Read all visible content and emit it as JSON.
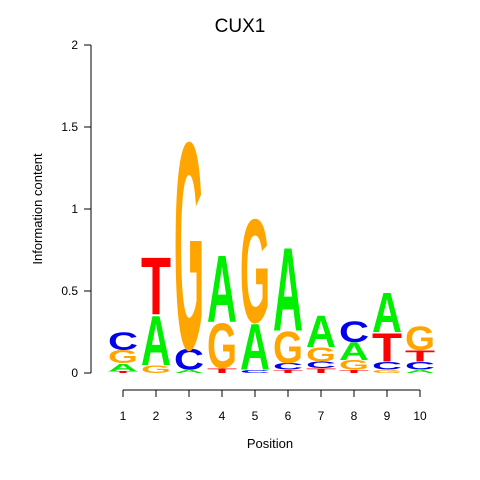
{
  "chart_data": {
    "type": "sequence-logo",
    "title": "CUX1",
    "xlabel": "Position",
    "ylabel": "Information content",
    "ylim": [
      0,
      2
    ],
    "yticks": [
      "0",
      "0.5",
      "1",
      "1.5",
      "2"
    ],
    "xticks": [
      "1",
      "2",
      "3",
      "4",
      "5",
      "6",
      "7",
      "8",
      "9",
      "10"
    ],
    "colors": {
      "A": "#00ee00",
      "C": "#0000ee",
      "G": "#ffa500",
      "T": "#ff0000"
    },
    "positions": [
      {
        "position": "1",
        "letters": [
          {
            "base": "T",
            "height": 0.01
          },
          {
            "base": "A",
            "height": 0.05
          },
          {
            "base": "G",
            "height": 0.08
          },
          {
            "base": "C",
            "height": 0.11
          }
        ]
      },
      {
        "position": "2",
        "letters": [
          {
            "base": "G",
            "height": 0.05
          },
          {
            "base": "A",
            "height": 0.31
          },
          {
            "base": "T",
            "height": 0.36
          }
        ]
      },
      {
        "position": "3",
        "letters": [
          {
            "base": "A",
            "height": 0.02
          },
          {
            "base": "C",
            "height": 0.13
          },
          {
            "base": "G",
            "height": 1.3
          }
        ]
      },
      {
        "position": "4",
        "letters": [
          {
            "base": "T",
            "height": 0.03
          },
          {
            "base": "G",
            "height": 0.28
          },
          {
            "base": "A",
            "height": 0.42
          }
        ]
      },
      {
        "position": "5",
        "letters": [
          {
            "base": "C",
            "height": 0.02
          },
          {
            "base": "A",
            "height": 0.29
          },
          {
            "base": "G",
            "height": 0.65
          }
        ]
      },
      {
        "position": "6",
        "letters": [
          {
            "base": "T",
            "height": 0.02
          },
          {
            "base": "C",
            "height": 0.04
          },
          {
            "base": "G",
            "height": 0.2
          },
          {
            "base": "A",
            "height": 0.52
          }
        ]
      },
      {
        "position": "7",
        "letters": [
          {
            "base": "T",
            "height": 0.03
          },
          {
            "base": "C",
            "height": 0.04
          },
          {
            "base": "G",
            "height": 0.09
          },
          {
            "base": "A",
            "height": 0.2
          }
        ]
      },
      {
        "position": "8",
        "letters": [
          {
            "base": "T",
            "height": 0.02
          },
          {
            "base": "G",
            "height": 0.06
          },
          {
            "base": "A",
            "height": 0.11
          },
          {
            "base": "C",
            "height": 0.13
          }
        ]
      },
      {
        "position": "9",
        "letters": [
          {
            "base": "G",
            "height": 0.02
          },
          {
            "base": "C",
            "height": 0.05
          },
          {
            "base": "T",
            "height": 0.18
          },
          {
            "base": "A",
            "height": 0.25
          }
        ]
      },
      {
        "position": "10",
        "letters": [
          {
            "base": "A",
            "height": 0.02
          },
          {
            "base": "C",
            "height": 0.05
          },
          {
            "base": "T",
            "height": 0.07
          },
          {
            "base": "G",
            "height": 0.15
          }
        ]
      }
    ]
  }
}
